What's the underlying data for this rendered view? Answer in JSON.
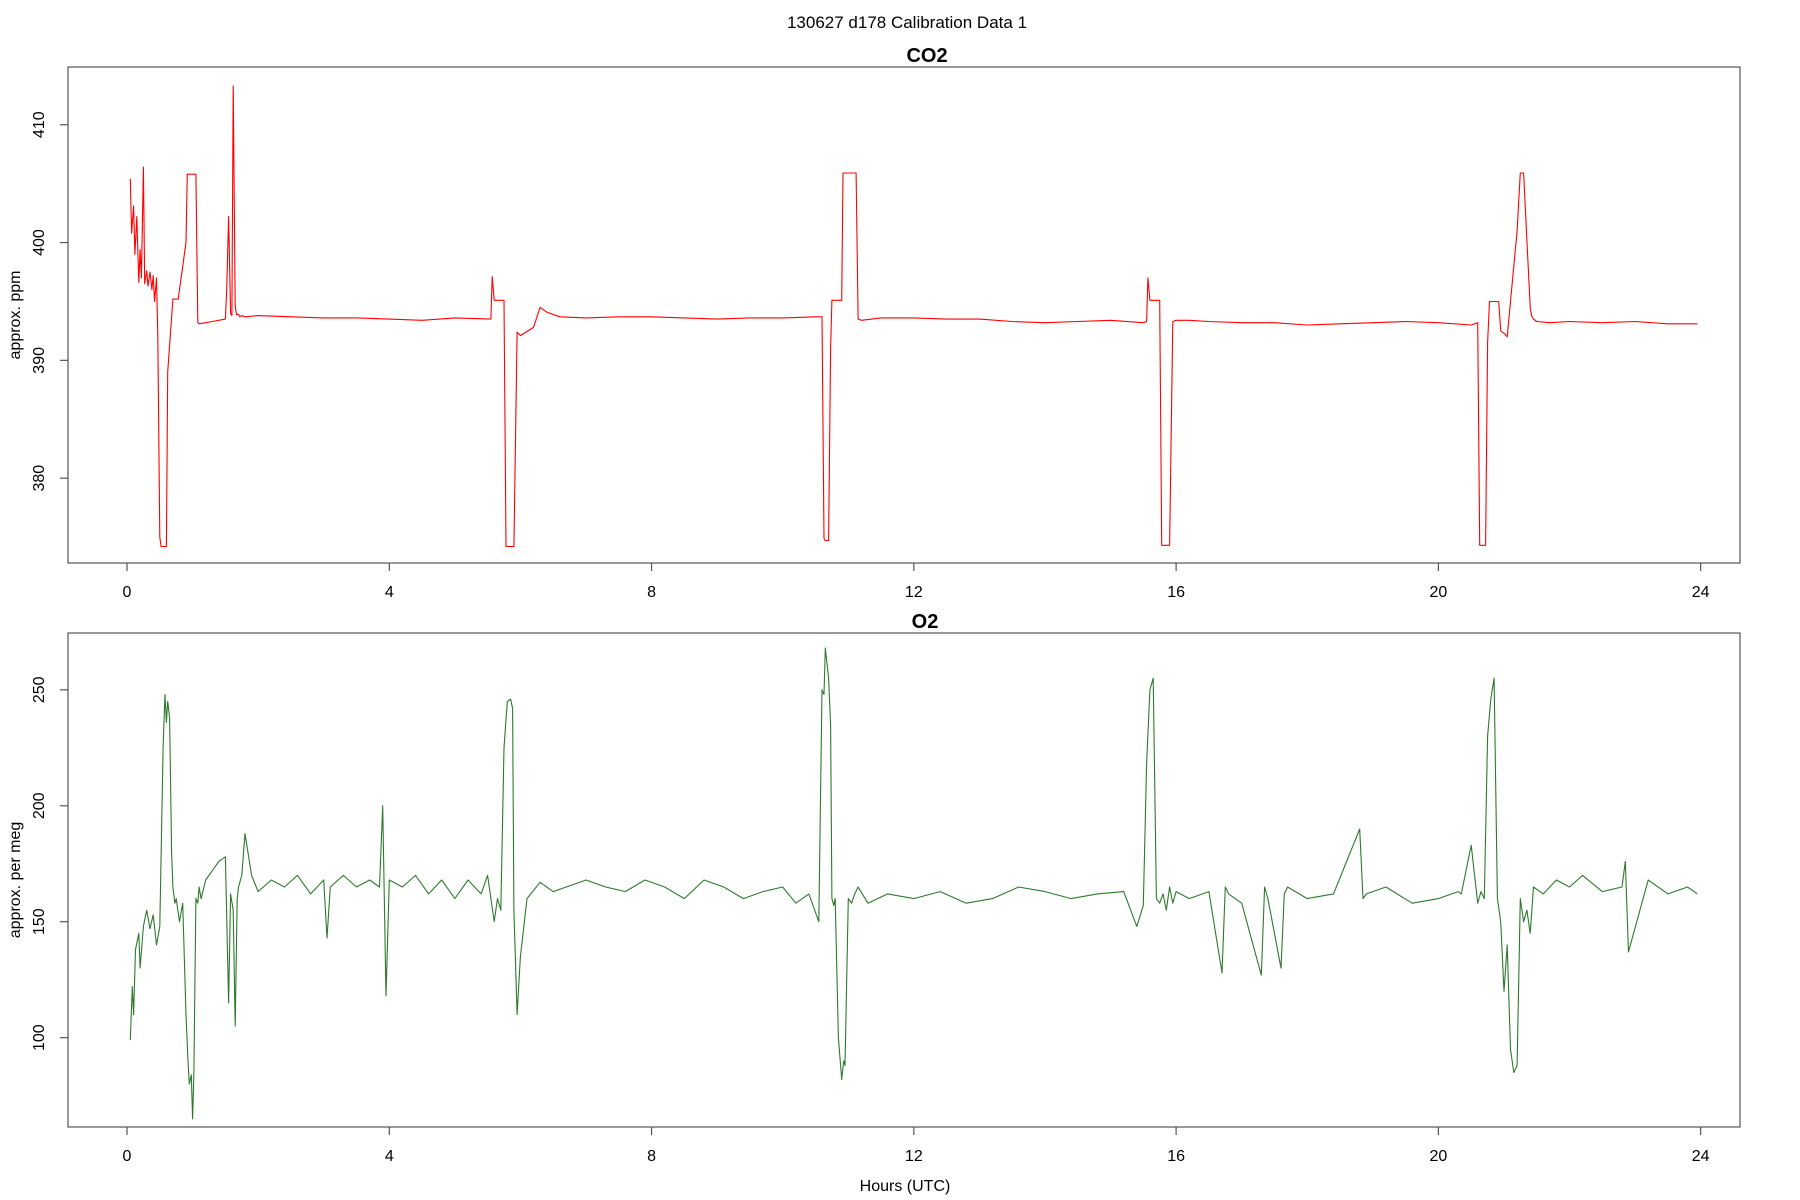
{
  "figure": {
    "suptitle": "130627   d178   Calibration Data 1"
  },
  "chart_data": [
    {
      "type": "line",
      "title": "CO2",
      "xlabel": "",
      "ylabel": "approx. ppm",
      "xlim": [
        -0.9,
        24.6
      ],
      "ylim": [
        372.8,
        414.9
      ],
      "xticks": [
        0,
        4,
        8,
        12,
        16,
        20,
        24
      ],
      "yticks": [
        380,
        390,
        400,
        410
      ],
      "color": "#ff0000",
      "grid": false,
      "series": [
        {
          "x": [
            0.05,
            0.07,
            0.1,
            0.12,
            0.15,
            0.18,
            0.2,
            0.22,
            0.25,
            0.27,
            0.3,
            0.32,
            0.35,
            0.38,
            0.4,
            0.42,
            0.45,
            0.47,
            0.5,
            0.52,
            0.55,
            0.58,
            0.6,
            0.62,
            0.7,
            0.72,
            0.75,
            0.78,
            0.9,
            0.92,
            0.95,
            1.0,
            1.05,
            1.08,
            1.1,
            1.3,
            1.5,
            1.52,
            1.55,
            1.58,
            1.6,
            1.62,
            1.65,
            1.67,
            1.7,
            1.72,
            1.75,
            1.8,
            2.0,
            2.5,
            3.0,
            3.5,
            4.0,
            4.5,
            5.0,
            5.55,
            5.57,
            5.6,
            5.65,
            5.72,
            5.75,
            5.78,
            5.9,
            5.95,
            6.0,
            6.2,
            6.3,
            6.4,
            6.6,
            7.0,
            7.5,
            8.0,
            8.5,
            9.0,
            9.5,
            10.0,
            10.5,
            10.55,
            10.6,
            10.63,
            10.65,
            10.7,
            10.73,
            10.75,
            10.78,
            10.9,
            10.92,
            10.95,
            11.0,
            11.12,
            11.15,
            11.2,
            11.5,
            12.0,
            12.5,
            13.0,
            13.5,
            14.0,
            14.5,
            15.0,
            15.5,
            15.55,
            15.57,
            15.6,
            15.65,
            15.72,
            15.75,
            15.78,
            15.9,
            15.95,
            16.0,
            16.2,
            16.5,
            17.0,
            17.5,
            18.0,
            18.5,
            19.0,
            19.5,
            20.0,
            20.5,
            20.55,
            20.6,
            20.63,
            20.65,
            20.72,
            20.75,
            20.78,
            20.9,
            20.92,
            20.95,
            21.0,
            21.05,
            21.2,
            21.25,
            21.27,
            21.3,
            21.4,
            21.42,
            21.45,
            21.5,
            21.7,
            22.0,
            22.5,
            23.0,
            23.5,
            23.95
          ],
          "y": [
            405.4,
            400.8,
            403.1,
            399.0,
            402.2,
            396.6,
            399.4,
            397.0,
            406.4,
            396.5,
            397.6,
            396.3,
            397.5,
            396.0,
            397.2,
            395.0,
            397.0,
            392.0,
            375.0,
            374.2,
            374.2,
            374.2,
            374.2,
            389.0,
            395.2,
            395.2,
            395.2,
            395.2,
            400.0,
            405.8,
            405.8,
            405.8,
            405.8,
            393.2,
            393.1,
            393.3,
            393.5,
            396.0,
            402.2,
            394.0,
            393.8,
            413.3,
            394.6,
            393.9,
            393.9,
            393.7,
            393.8,
            393.7,
            393.8,
            393.7,
            393.6,
            393.6,
            393.5,
            393.4,
            393.6,
            393.5,
            397.1,
            395.1,
            395.1,
            395.1,
            395.1,
            374.2,
            374.2,
            392.4,
            392.1,
            392.8,
            394.5,
            394.1,
            393.7,
            393.6,
            393.7,
            393.7,
            393.6,
            393.5,
            393.6,
            393.6,
            393.7,
            393.7,
            393.7,
            374.9,
            374.7,
            374.7,
            391.0,
            395.1,
            395.1,
            395.1,
            405.9,
            405.9,
            405.9,
            405.9,
            393.5,
            393.4,
            393.6,
            393.6,
            393.5,
            393.5,
            393.3,
            393.2,
            393.3,
            393.4,
            393.2,
            393.3,
            397.0,
            395.1,
            395.1,
            395.1,
            395.1,
            374.3,
            374.3,
            393.3,
            393.4,
            393.4,
            393.3,
            393.2,
            393.2,
            393.0,
            393.1,
            393.2,
            393.3,
            393.2,
            393.0,
            393.1,
            393.2,
            374.3,
            374.3,
            374.3,
            391.5,
            395.0,
            395.0,
            395.0,
            392.5,
            392.3,
            392.0,
            401.0,
            405.9,
            405.9,
            405.9,
            394.5,
            393.8,
            393.5,
            393.3,
            393.2,
            393.3,
            393.2,
            393.3,
            393.1,
            393.1
          ]
        }
      ]
    },
    {
      "type": "line",
      "title": "O2",
      "xlabel": "Hours (UTC)",
      "ylabel": "approx. per meg",
      "xlim": [
        -0.9,
        24.6
      ],
      "ylim": [
        61.5,
        274.5
      ],
      "xticks": [
        0,
        4,
        8,
        12,
        16,
        20,
        24
      ],
      "yticks": [
        100,
        150,
        200,
        250
      ],
      "color": "#2d7a2d",
      "grid": false,
      "series": [
        {
          "x": [
            0.05,
            0.08,
            0.1,
            0.13,
            0.18,
            0.2,
            0.25,
            0.3,
            0.35,
            0.4,
            0.45,
            0.5,
            0.55,
            0.58,
            0.6,
            0.62,
            0.65,
            0.68,
            0.7,
            0.73,
            0.75,
            0.8,
            0.85,
            0.9,
            0.93,
            0.95,
            0.98,
            1.0,
            1.02,
            1.05,
            1.08,
            1.1,
            1.13,
            1.2,
            1.3,
            1.4,
            1.5,
            1.55,
            1.58,
            1.62,
            1.65,
            1.68,
            1.7,
            1.75,
            1.8,
            1.9,
            2.0,
            2.2,
            2.4,
            2.6,
            2.8,
            3.0,
            3.05,
            3.1,
            3.3,
            3.5,
            3.7,
            3.85,
            3.9,
            3.95,
            4.0,
            4.2,
            4.4,
            4.6,
            4.8,
            5.0,
            5.2,
            5.4,
            5.5,
            5.6,
            5.65,
            5.7,
            5.75,
            5.8,
            5.85,
            5.88,
            5.9,
            5.95,
            6.0,
            6.1,
            6.3,
            6.5,
            6.7,
            7.0,
            7.3,
            7.6,
            7.9,
            8.2,
            8.5,
            8.8,
            9.1,
            9.4,
            9.7,
            10.0,
            10.2,
            10.4,
            10.55,
            10.6,
            10.63,
            10.65,
            10.7,
            10.73,
            10.75,
            10.78,
            10.8,
            10.85,
            10.9,
            10.93,
            10.95,
            11.0,
            11.05,
            11.1,
            11.15,
            11.3,
            11.6,
            12.0,
            12.4,
            12.8,
            13.2,
            13.6,
            14.0,
            14.4,
            14.8,
            15.2,
            15.4,
            15.5,
            15.55,
            15.6,
            15.65,
            15.7,
            15.75,
            15.8,
            15.85,
            15.9,
            15.95,
            16.0,
            16.2,
            16.5,
            16.7,
            16.75,
            16.8,
            17.0,
            17.3,
            17.35,
            17.4,
            17.6,
            17.65,
            17.7,
            18.0,
            18.4,
            18.8,
            18.85,
            18.9,
            19.2,
            19.6,
            20.0,
            20.3,
            20.35,
            20.5,
            20.6,
            20.65,
            20.7,
            20.75,
            20.8,
            20.85,
            20.9,
            20.95,
            21.0,
            21.05,
            21.1,
            21.15,
            21.2,
            21.25,
            21.3,
            21.35,
            21.4,
            21.45,
            21.6,
            21.8,
            22.0,
            22.2,
            22.5,
            22.8,
            22.85,
            22.9,
            23.2,
            23.5,
            23.8,
            23.95
          ],
          "y": [
            99,
            122,
            110,
            138,
            145,
            130,
            148,
            155,
            147,
            153,
            140,
            148,
            225,
            248,
            236,
            245,
            238,
            180,
            165,
            158,
            160,
            150,
            158,
            110,
            90,
            80,
            84,
            65,
            85,
            160,
            158,
            165,
            160,
            168,
            172,
            176,
            178,
            115,
            162,
            155,
            105,
            160,
            165,
            170,
            188,
            170,
            163,
            168,
            165,
            170,
            162,
            168,
            143,
            165,
            170,
            165,
            168,
            165,
            200,
            118,
            168,
            165,
            170,
            162,
            168,
            160,
            168,
            162,
            170,
            150,
            160,
            155,
            225,
            245,
            246,
            242,
            155,
            110,
            135,
            160,
            167,
            163,
            165,
            168,
            165,
            163,
            168,
            165,
            160,
            168,
            165,
            160,
            163,
            165,
            158,
            162,
            150,
            250,
            248,
            268,
            255,
            235,
            160,
            157,
            160,
            100,
            82,
            90,
            88,
            160,
            158,
            162,
            165,
            158,
            162,
            160,
            163,
            158,
            160,
            165,
            163,
            160,
            162,
            163,
            148,
            157,
            218,
            250,
            255,
            160,
            158,
            162,
            155,
            165,
            158,
            163,
            160,
            163,
            128,
            165,
            162,
            158,
            127,
            165,
            160,
            130,
            162,
            165,
            160,
            162,
            190,
            160,
            162,
            165,
            158,
            160,
            163,
            162,
            183,
            158,
            163,
            160,
            230,
            246,
            255,
            160,
            150,
            120,
            140,
            95,
            85,
            88,
            160,
            150,
            155,
            145,
            165,
            162,
            168,
            165,
            170,
            163,
            165,
            176,
            137,
            168,
            162,
            165,
            162
          ]
        }
      ]
    }
  ]
}
